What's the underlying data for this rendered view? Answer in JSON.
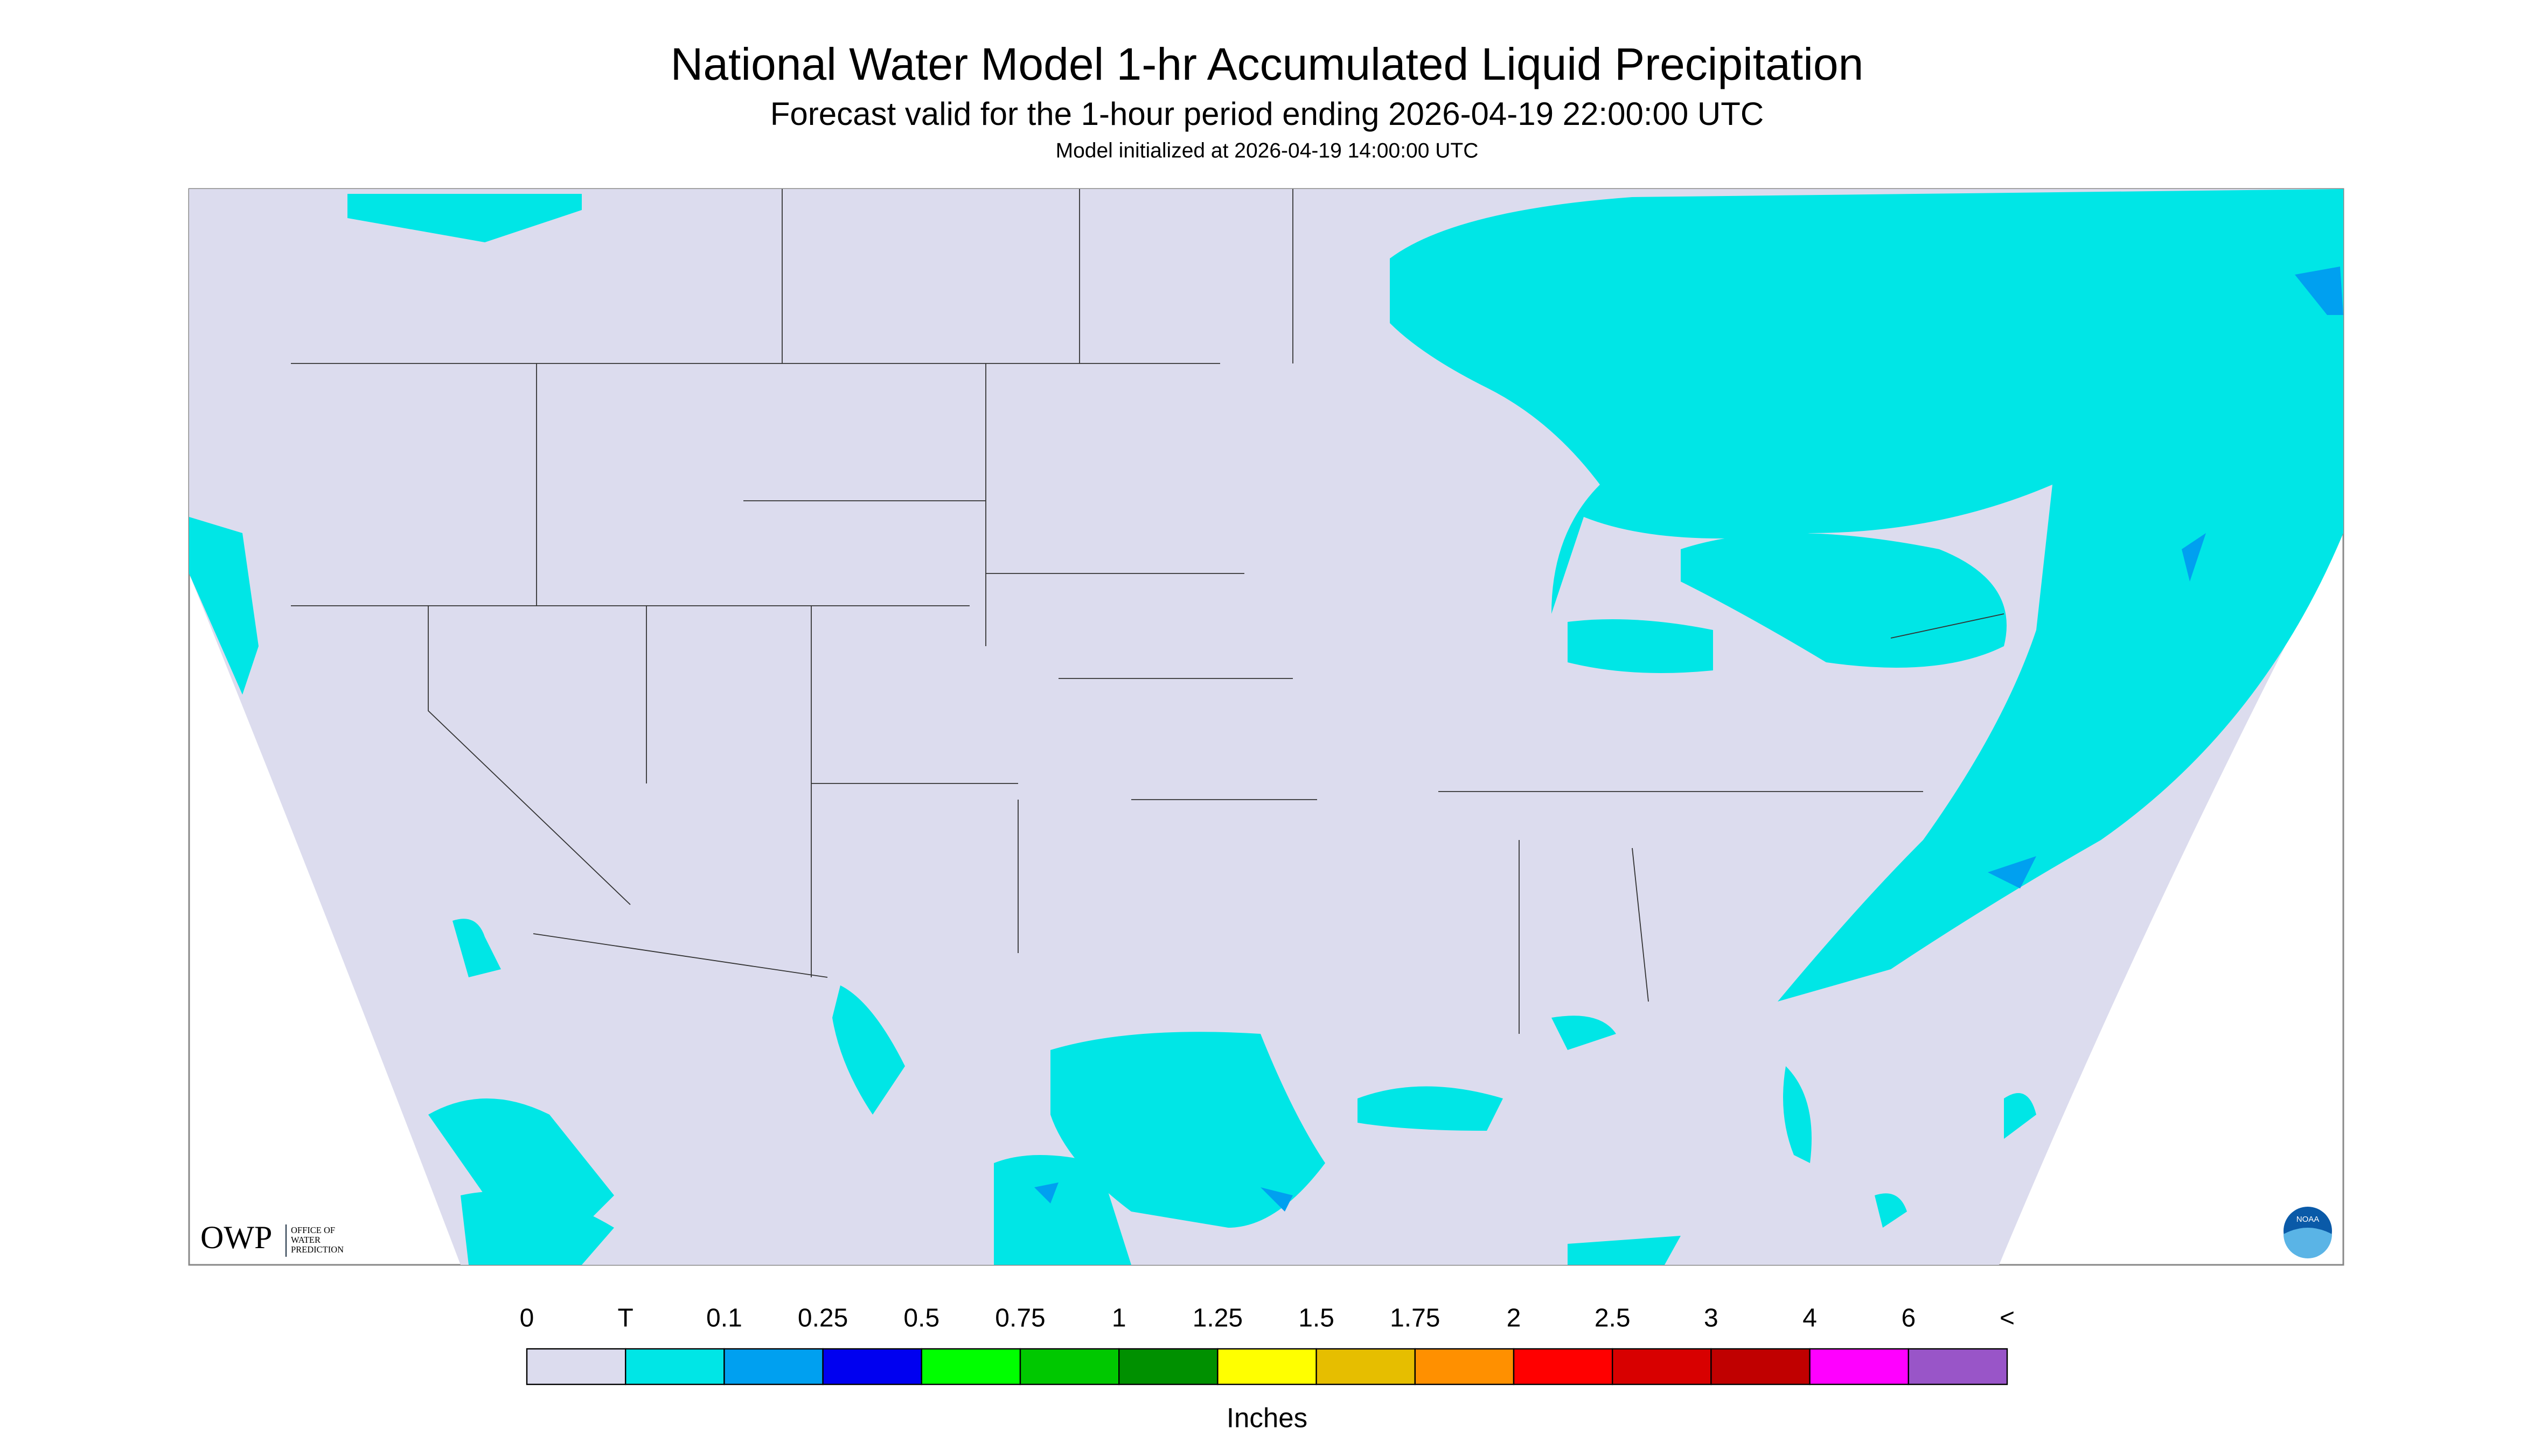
{
  "header": {
    "title": "National Water Model 1-hr Accumulated Liquid Precipitation",
    "subtitle": "Forecast valid for the 1-hour period ending 2026-04-19 22:00:00 UTC",
    "initialized": "Model initialized at 2026-04-19 14:00:00 UTC"
  },
  "logos": {
    "owp": "OWP",
    "owp_name": [
      "OFFICE OF",
      "WATER",
      "PREDICTION"
    ],
    "noaa": "NOAA"
  },
  "legend": {
    "labels": [
      "0",
      "T",
      "0.1",
      "0.25",
      "0.5",
      "0.75",
      "1",
      "1.25",
      "1.5",
      "1.75",
      "2",
      "2.5",
      "3",
      "4",
      "6",
      "<"
    ],
    "colors": [
      "#dcdcee",
      "#00e6e6",
      "#00a0f0",
      "#0000f0",
      "#00ff00",
      "#00c800",
      "#009000",
      "#ffff00",
      "#e6be00",
      "#ff9000",
      "#ff0000",
      "#d80000",
      "#c00000",
      "#ff00ff",
      "#9955c8"
    ],
    "unit": "Inches"
  }
}
